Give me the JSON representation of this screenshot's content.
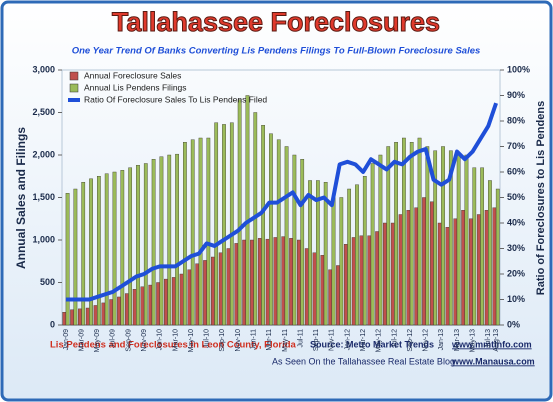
{
  "chart_data": {
    "type": "combo",
    "title": "Tallahassee Foreclosures",
    "subtitle": "One Year Trend Of Banks Converting Lis Pendens Filings To Full-Blown Foreclosure Sales",
    "y_label": "Annual Sales and Filings",
    "y2_label": "Ratio of Foreclosures to Lis Pendens",
    "footer_left": "Lis Pendens and Foreclosures In Leon County, Florida",
    "source": "Source: Metro Market Trends",
    "source_url": "www.mmtinfo.com",
    "blog": "As Seen On the Tallahassee Real Estate Blog",
    "blog_url": "www.Manausa.com",
    "categories": [
      "Jan-09",
      null,
      "Mar-09",
      null,
      "May-09",
      null,
      "Jul-09",
      null,
      "Sep-09",
      null,
      "Nov-09",
      null,
      "Jan-10",
      null,
      "Mar-10",
      null,
      "May-10",
      null,
      "Jul-10",
      null,
      "Sep-10",
      null,
      "Nov-10",
      null,
      "Jan-11",
      null,
      "Mar-11",
      null,
      "May-11",
      null,
      "Jul-11",
      null,
      "Sep-11",
      null,
      "Nov-11",
      null,
      "Jan-12",
      null,
      "Mar-12",
      null,
      "May-12",
      null,
      "Jul-12",
      null,
      "Sep-12",
      null,
      "Nov-12",
      null,
      "Jan-13",
      null,
      "Mar-13",
      null,
      "May-13",
      null,
      "Jul-13",
      "Aug-13"
    ],
    "series": [
      {
        "name": "Annual Foreclosure Sales",
        "type": "bar",
        "color": "#c0504d",
        "values": [
          150,
          180,
          190,
          200,
          230,
          260,
          300,
          330,
          370,
          420,
          450,
          470,
          500,
          540,
          560,
          600,
          650,
          720,
          760,
          800,
          850,
          900,
          960,
          1000,
          1000,
          1020,
          1010,
          1030,
          1040,
          1020,
          1000,
          900,
          850,
          820,
          650,
          700,
          950,
          1030,
          1050,
          1050,
          1100,
          1200,
          1200,
          1300,
          1350,
          1380,
          1500,
          1450,
          1200,
          1150,
          1250,
          1350,
          1250,
          1300,
          1350,
          1380
        ]
      },
      {
        "name": "Annual Lis Pendens Filings",
        "type": "bar",
        "color": "#9bbb59",
        "values": [
          1550,
          1600,
          1680,
          1720,
          1750,
          1780,
          1800,
          1820,
          1850,
          1880,
          1900,
          1950,
          1980,
          2000,
          2010,
          2150,
          2180,
          2200,
          2200,
          2380,
          2360,
          2380,
          2650,
          2700,
          2500,
          2350,
          2250,
          2180,
          2100,
          2000,
          1950,
          1700,
          1700,
          1680,
          1500,
          1500,
          1600,
          1650,
          1750,
          1900,
          2000,
          2100,
          2150,
          2200,
          2150,
          2200,
          2100,
          2050,
          2100,
          2050,
          2000,
          2000,
          1850,
          1850,
          1700,
          1600
        ]
      },
      {
        "name": "Ratio Of Foreclosure Sales To Lis Pendens Filed",
        "type": "line",
        "axis": "y2",
        "color": "#1f4fd8",
        "values": [
          10,
          10,
          10,
          10,
          11,
          12,
          13,
          15,
          17,
          19,
          20,
          22,
          23,
          23,
          23,
          25,
          27,
          28,
          32,
          31,
          33,
          35,
          37,
          40,
          42,
          44,
          48,
          48,
          50,
          52,
          47,
          51,
          49,
          50,
          47,
          63,
          64,
          63,
          60,
          65,
          63,
          61,
          64,
          63,
          66,
          68,
          69,
          57,
          55,
          57,
          68,
          65,
          68,
          73,
          78,
          87
        ]
      }
    ],
    "ylim": [
      0,
      3000
    ],
    "yticks": [
      0,
      500,
      {
        "value": 1000,
        "label": "1,000"
      },
      {
        "value": 1500,
        "label": "1,500"
      },
      {
        "value": 2000,
        "label": "2,000"
      },
      {
        "value": 2500,
        "label": "2,500"
      },
      {
        "value": 3000,
        "label": "3,000"
      }
    ],
    "y2lim": [
      0,
      100
    ],
    "y2ticks": [
      {
        "value": 0,
        "label": "0%"
      },
      {
        "value": 10,
        "label": "10%"
      },
      {
        "value": 20,
        "label": "20%"
      },
      {
        "value": 30,
        "label": "30%"
      },
      {
        "value": 40,
        "label": "40%"
      },
      {
        "value": 50,
        "label": "50%"
      },
      {
        "value": 60,
        "label": "60%"
      },
      {
        "value": 70,
        "label": "70%"
      },
      {
        "value": 80,
        "label": "80%"
      },
      {
        "value": 90,
        "label": "90%"
      },
      {
        "value": 100,
        "label": "100%"
      }
    ],
    "legend": "top-left"
  }
}
